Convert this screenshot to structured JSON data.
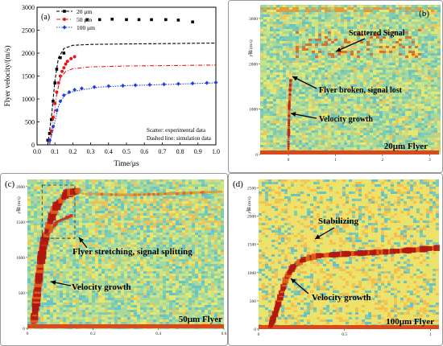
{
  "panels": {
    "a": {
      "tag": "(a)",
      "xlabel": "Time/μs",
      "ylabel": "Flyer velocity/(m/s)",
      "note_lines": [
        "Scatter: experimental data",
        "Dashed line: simulation data"
      ]
    },
    "b": {
      "tag": "(b)",
      "yaxis_label": "y轴 (m/s)",
      "flyer_label": "20μm Flyer",
      "annotations": [
        "Scattered Signal",
        "Flyer broken, signal lost",
        "Velocity growth"
      ]
    },
    "c": {
      "tag": "(c)",
      "yaxis_label": "y轴 (m/s)",
      "flyer_label": "50μm Flyer",
      "annotations": [
        "Flyer stretching, signal splitting",
        "Velocity growth"
      ]
    },
    "d": {
      "tag": "(d)",
      "yaxis_label": "y轴 (m/s)",
      "flyer_label": "100μm Flyer",
      "annotations": [
        "Stabilizing",
        "Velocity growth"
      ]
    }
  },
  "colors": {
    "series_20": "#000000",
    "series_50": "#e8141b",
    "series_100": "#1f3fe0",
    "annotation_arrow": "#000000",
    "heatmap_bg": "#8dd2a0",
    "signal": "#b3170f"
  },
  "chart_data": {
    "type": "scatter",
    "xlabel": "Time/μs",
    "ylabel": "Flyer velocity/(m/s)",
    "xlim": [
      0.0,
      1.0
    ],
    "ylim": [
      0,
      3000
    ],
    "xticks": [
      "0.0",
      "0.1",
      "0.2",
      "0.3",
      "0.4",
      "0.5",
      "0.6",
      "0.7",
      "0.8",
      "0.9",
      "1.0"
    ],
    "yticks": [
      "0",
      "500",
      "1000",
      "1500",
      "2000",
      "2500",
      "3000"
    ],
    "legend_position": "top-left",
    "series": [
      {
        "name": "20 μm",
        "color": "#000000",
        "marker": "square",
        "experimental": [
          {
            "x": 0.06,
            "y": 100
          },
          {
            "x": 0.07,
            "y": 250
          },
          {
            "x": 0.08,
            "y": 550
          },
          {
            "x": 0.09,
            "y": 950
          },
          {
            "x": 0.1,
            "y": 1350
          },
          {
            "x": 0.11,
            "y": 1650
          },
          {
            "x": 0.13,
            "y": 1900
          },
          {
            "x": 0.15,
            "y": 2000
          },
          {
            "x": 0.28,
            "y": 2730
          },
          {
            "x": 0.35,
            "y": 2730
          },
          {
            "x": 0.42,
            "y": 2740
          },
          {
            "x": 0.5,
            "y": 2730
          },
          {
            "x": 0.57,
            "y": 2730
          },
          {
            "x": 0.64,
            "y": 2730
          },
          {
            "x": 0.72,
            "y": 2730
          },
          {
            "x": 0.79,
            "y": 2720
          },
          {
            "x": 0.87,
            "y": 2680
          }
        ],
        "simulation": [
          {
            "x": 0.06,
            "y": 0
          },
          {
            "x": 0.08,
            "y": 600
          },
          {
            "x": 0.1,
            "y": 1400
          },
          {
            "x": 0.12,
            "y": 1900
          },
          {
            "x": 0.15,
            "y": 2100
          },
          {
            "x": 0.2,
            "y": 2170
          },
          {
            "x": 0.3,
            "y": 2190
          },
          {
            "x": 0.5,
            "y": 2200
          },
          {
            "x": 0.8,
            "y": 2210
          },
          {
            "x": 1.0,
            "y": 2220
          }
        ]
      },
      {
        "name": "50 μm",
        "color": "#e8141b",
        "marker": "circle",
        "experimental": [
          {
            "x": 0.07,
            "y": 100
          },
          {
            "x": 0.08,
            "y": 300
          },
          {
            "x": 0.09,
            "y": 600
          },
          {
            "x": 0.1,
            "y": 900
          },
          {
            "x": 0.11,
            "y": 1150
          },
          {
            "x": 0.12,
            "y": 1350
          },
          {
            "x": 0.13,
            "y": 1500
          },
          {
            "x": 0.14,
            "y": 1600
          },
          {
            "x": 0.15,
            "y": 1680
          },
          {
            "x": 0.16,
            "y": 1760
          },
          {
            "x": 0.17,
            "y": 1820
          },
          {
            "x": 0.19,
            "y": 1880
          },
          {
            "x": 0.21,
            "y": 1920
          }
        ],
        "simulation": [
          {
            "x": 0.07,
            "y": 0
          },
          {
            "x": 0.09,
            "y": 500
          },
          {
            "x": 0.11,
            "y": 1100
          },
          {
            "x": 0.13,
            "y": 1450
          },
          {
            "x": 0.16,
            "y": 1600
          },
          {
            "x": 0.2,
            "y": 1660
          },
          {
            "x": 0.3,
            "y": 1700
          },
          {
            "x": 0.5,
            "y": 1720
          },
          {
            "x": 0.8,
            "y": 1730
          },
          {
            "x": 1.0,
            "y": 1740
          }
        ]
      },
      {
        "name": "100 μm",
        "color": "#1f3fe0",
        "marker": "diamond",
        "experimental": [
          {
            "x": 0.07,
            "y": 100
          },
          {
            "x": 0.09,
            "y": 400
          },
          {
            "x": 0.11,
            "y": 750
          },
          {
            "x": 0.13,
            "y": 950
          },
          {
            "x": 0.15,
            "y": 1080
          },
          {
            "x": 0.18,
            "y": 1150
          },
          {
            "x": 0.21,
            "y": 1200
          },
          {
            "x": 0.25,
            "y": 1230
          },
          {
            "x": 0.32,
            "y": 1260
          },
          {
            "x": 0.4,
            "y": 1280
          },
          {
            "x": 0.48,
            "y": 1290
          },
          {
            "x": 0.55,
            "y": 1300
          },
          {
            "x": 0.63,
            "y": 1310
          },
          {
            "x": 0.71,
            "y": 1320
          },
          {
            "x": 0.79,
            "y": 1330
          },
          {
            "x": 0.87,
            "y": 1340
          },
          {
            "x": 0.95,
            "y": 1350
          },
          {
            "x": 1.0,
            "y": 1360
          }
        ],
        "simulation": [
          {
            "x": 0.07,
            "y": 0
          },
          {
            "x": 0.1,
            "y": 500
          },
          {
            "x": 0.12,
            "y": 850
          },
          {
            "x": 0.14,
            "y": 1000
          },
          {
            "x": 0.16,
            "y": 1100
          },
          {
            "x": 0.2,
            "y": 1160
          },
          {
            "x": 0.25,
            "y": 1200
          },
          {
            "x": 0.35,
            "y": 1260
          },
          {
            "x": 0.5,
            "y": 1290
          },
          {
            "x": 0.75,
            "y": 1320
          },
          {
            "x": 1.0,
            "y": 1350
          }
        ]
      }
    ]
  },
  "heatmaps": {
    "b": {
      "xticks": [
        "0",
        "1",
        "2",
        "3"
      ],
      "yticks": [
        "0",
        "1000",
        "2000",
        "3000"
      ],
      "xlim": [
        -0.6,
        3.2
      ],
      "ylim": [
        0,
        3300
      ]
    },
    "c": {
      "xticks": [
        "0",
        "0.2",
        "0.4",
        "0.6"
      ],
      "yticks": [
        "0",
        "500",
        "1000",
        "1500",
        "2000"
      ],
      "xlim": [
        0,
        0.6
      ],
      "ylim": [
        0,
        2100
      ]
    },
    "d": {
      "xticks": [
        "0",
        "0.5",
        "1"
      ],
      "yticks": [
        "0",
        "500",
        "1000",
        "1500",
        "2000",
        "2500"
      ],
      "xlim": [
        0,
        1.05
      ],
      "ylim": [
        0,
        2650
      ]
    }
  }
}
